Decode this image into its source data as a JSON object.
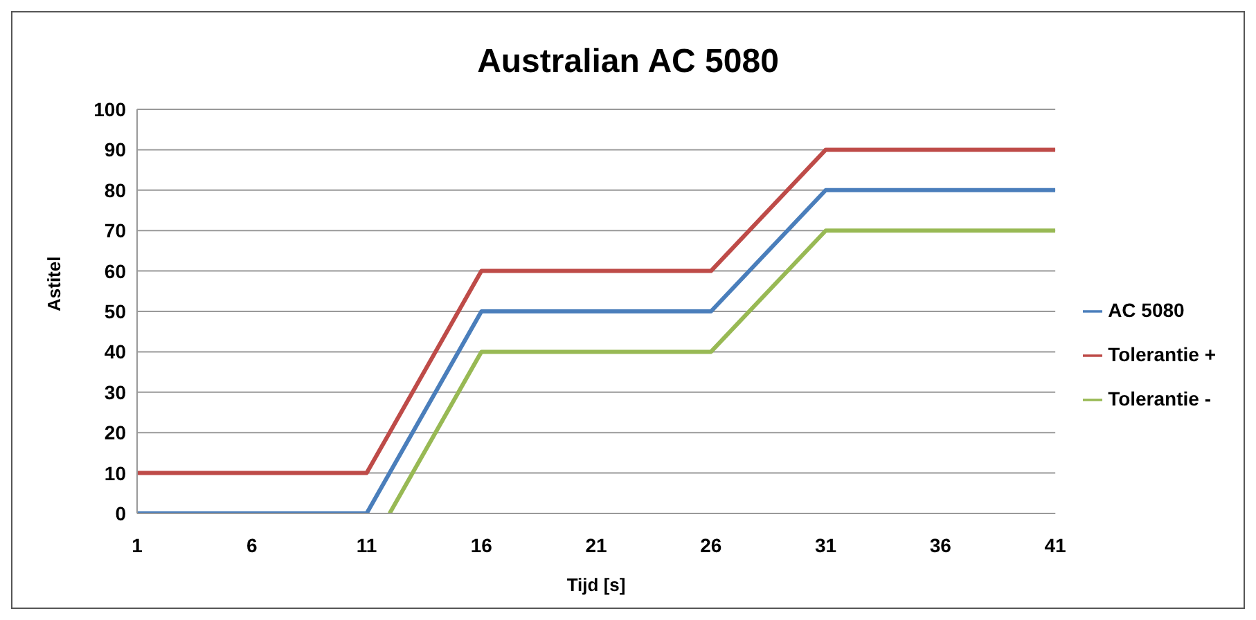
{
  "chart_data": {
    "type": "line",
    "title": "Australian AC 5080",
    "xlabel": "Tijd [s]",
    "ylabel": "Astitel",
    "x": [
      1,
      11,
      12,
      16,
      26,
      31,
      41
    ],
    "series": [
      {
        "name": "AC 5080",
        "color": "#4a7ebb",
        "values": [
          0,
          0,
          10,
          50,
          50,
          80,
          80
        ]
      },
      {
        "name": "Tolerantie +",
        "color": "#be4b48",
        "values": [
          10,
          10,
          20,
          60,
          60,
          90,
          90
        ]
      },
      {
        "name": "Tolerantie -",
        "color": "#98b954",
        "values": [
          null,
          null,
          0,
          40,
          40,
          70,
          70
        ]
      }
    ],
    "xlim": [
      1,
      41
    ],
    "xticks": [
      1,
      6,
      11,
      16,
      21,
      26,
      31,
      36,
      41
    ],
    "ylim": [
      0,
      100
    ],
    "yticks": [
      0,
      10,
      20,
      30,
      40,
      50,
      60,
      70,
      80,
      90,
      100
    ],
    "grid": "y",
    "legend": "right",
    "marker": "none",
    "line_style": "solid"
  }
}
